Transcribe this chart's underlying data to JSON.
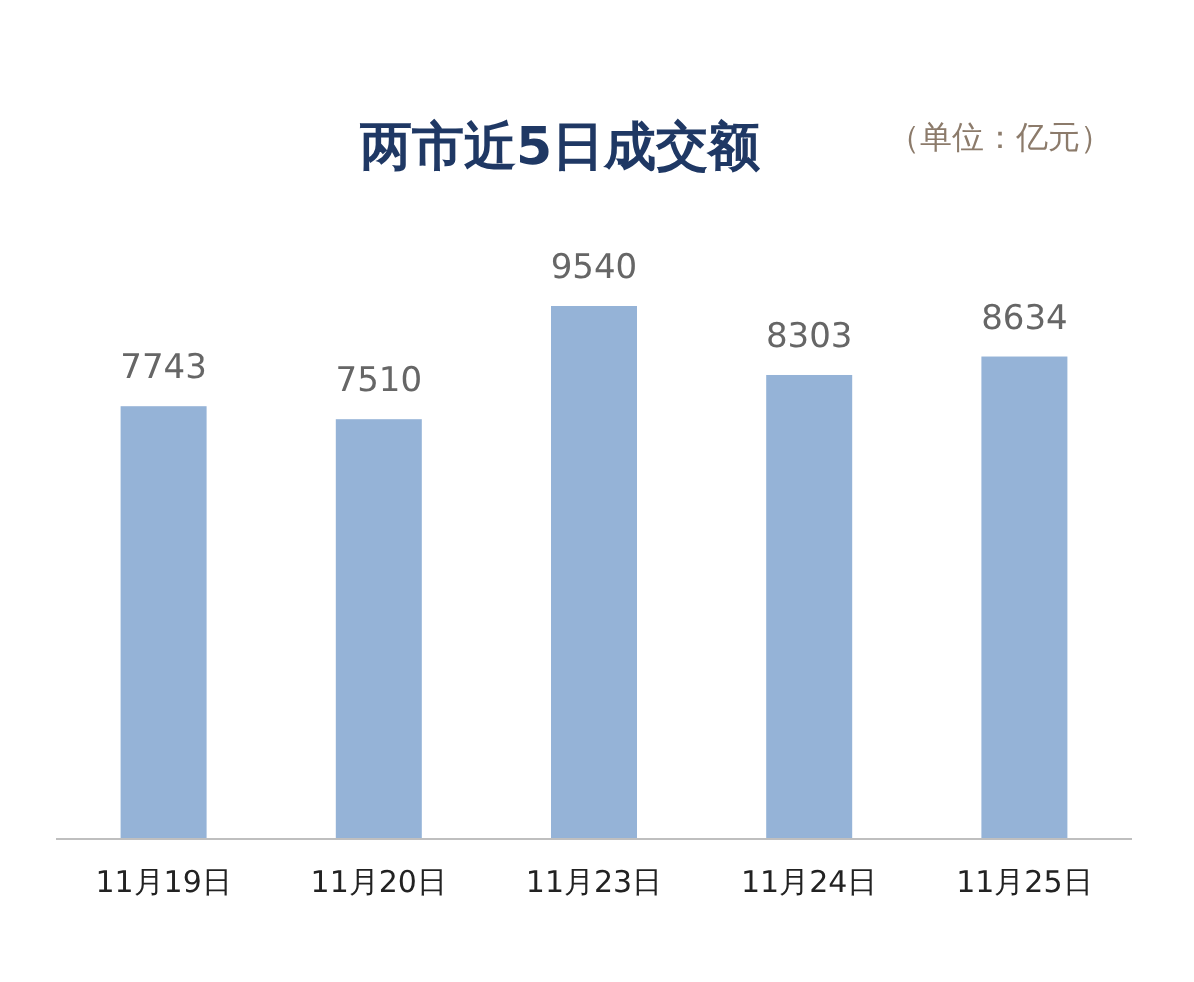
{
  "chart_data": {
    "type": "bar",
    "title": "两市近5日成交额",
    "subtitle": "（单位：亿元）",
    "categories": [
      "11月19日",
      "11月20日",
      "11月23日",
      "11月24日",
      "11月25日"
    ],
    "values": [
      7743,
      7510,
      9540,
      8303,
      8634
    ],
    "color": "#95b3d7",
    "data_labels": true
  }
}
